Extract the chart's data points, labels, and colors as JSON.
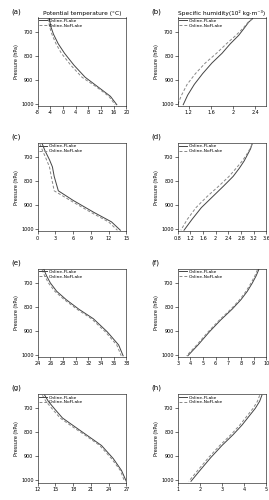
{
  "panels": [
    {
      "label": "(a)",
      "col": 0,
      "row": 0,
      "title": "Potential temperature (°C)",
      "xlim": [
        -8,
        20
      ],
      "xticks": [
        -8,
        -4,
        0,
        4,
        8,
        12,
        16,
        20
      ],
      "ylim": [
        1010,
        640
      ],
      "yticks": [
        700,
        800,
        900,
        1000
      ],
      "ylabel": "Pressure (hPa)",
      "flake_x": [
        -4.3,
        -4.1,
        -3.8,
        -3.0,
        -1.5,
        0.5,
        3.5,
        7.0,
        11.0,
        15.0,
        17.0
      ],
      "flake_p": [
        645,
        660,
        680,
        710,
        750,
        790,
        840,
        890,
        930,
        970,
        1005
      ],
      "noflake_x": [
        -4.7,
        -4.5,
        -4.2,
        -3.5,
        -2.2,
        -0.5,
        2.5,
        6.0,
        10.5,
        14.5,
        16.5
      ],
      "noflake_p": [
        645,
        660,
        680,
        710,
        750,
        790,
        840,
        890,
        930,
        970,
        1005
      ]
    },
    {
      "label": "(b)",
      "col": 1,
      "row": 0,
      "title": "Specific humidity(10² kg·m⁻³)",
      "xlim": [
        1.0,
        2.6
      ],
      "xticks": [
        1.2,
        1.6,
        2.0,
        2.4
      ],
      "ylim": [
        1010,
        640
      ],
      "yticks": [
        700,
        800,
        900,
        1000
      ],
      "ylabel": "Pressure (hPa)",
      "flake_x": [
        2.35,
        2.28,
        2.2,
        2.1,
        1.95,
        1.8,
        1.62,
        1.45,
        1.3,
        1.18,
        1.1
      ],
      "flake_p": [
        645,
        660,
        685,
        715,
        750,
        790,
        830,
        875,
        920,
        965,
        1005
      ],
      "noflake_x": [
        2.35,
        2.27,
        2.18,
        2.05,
        1.88,
        1.7,
        1.5,
        1.32,
        1.17,
        1.07,
        1.0
      ],
      "noflake_p": [
        645,
        660,
        685,
        715,
        750,
        790,
        830,
        875,
        920,
        965,
        1005
      ]
    },
    {
      "label": "(c)",
      "col": 0,
      "row": 1,
      "title": "",
      "xlim": [
        0,
        15
      ],
      "xticks": [
        0,
        3,
        6,
        9,
        12,
        15
      ],
      "ylim": [
        1010,
        640
      ],
      "yticks": [
        700,
        800,
        900,
        1000
      ],
      "ylabel": "Pressure (hPa)",
      "flake_x": [
        0.8,
        1.2,
        2.0,
        2.5,
        2.8,
        3.5,
        6.0,
        9.5,
        12.5,
        14.0
      ],
      "flake_p": [
        645,
        670,
        710,
        740,
        780,
        840,
        880,
        930,
        970,
        1005
      ],
      "noflake_x": [
        0.4,
        0.8,
        1.5,
        2.0,
        2.3,
        2.8,
        5.5,
        9.0,
        12.0,
        13.5
      ],
      "noflake_p": [
        645,
        670,
        710,
        740,
        780,
        840,
        880,
        930,
        970,
        1005
      ]
    },
    {
      "label": "(d)",
      "col": 1,
      "row": 1,
      "title": "",
      "xlim": [
        0.8,
        3.6
      ],
      "xticks": [
        0.8,
        1.2,
        1.6,
        2.0,
        2.4,
        2.8,
        3.2,
        3.6
      ],
      "ylim": [
        1010,
        640
      ],
      "yticks": [
        700,
        800,
        900,
        1000
      ],
      "ylabel": "Pressure (hPa)",
      "flake_x": [
        3.15,
        3.1,
        3.0,
        2.9,
        2.75,
        2.55,
        2.25,
        1.9,
        1.55,
        1.25,
        1.0
      ],
      "flake_p": [
        645,
        665,
        690,
        715,
        745,
        780,
        820,
        865,
        910,
        960,
        1005
      ],
      "noflake_x": [
        3.15,
        3.08,
        2.97,
        2.84,
        2.65,
        2.42,
        2.1,
        1.72,
        1.38,
        1.1,
        0.9
      ],
      "noflake_p": [
        645,
        665,
        690,
        715,
        745,
        780,
        820,
        865,
        910,
        960,
        1005
      ]
    },
    {
      "label": "(e)",
      "col": 0,
      "row": 2,
      "title": "",
      "xlim": [
        24.0,
        38.0
      ],
      "xticks": [
        24.0,
        26.0,
        28.0,
        30.0,
        32.0,
        34.0,
        36.0,
        38.0
      ],
      "ylim": [
        1010,
        640
      ],
      "yticks": [
        700,
        800,
        900,
        1000
      ],
      "ylabel": "Pressure (hPa)",
      "flake_x": [
        25.0,
        25.4,
        26.0,
        27.0,
        28.5,
        30.5,
        32.8,
        35.0,
        36.8,
        37.5
      ],
      "flake_p": [
        645,
        670,
        700,
        735,
        770,
        810,
        850,
        905,
        960,
        1005
      ],
      "noflake_x": [
        24.7,
        25.1,
        25.7,
        26.7,
        28.2,
        30.2,
        32.5,
        34.7,
        36.5,
        37.2
      ],
      "noflake_p": [
        645,
        670,
        700,
        735,
        770,
        810,
        850,
        905,
        960,
        1005
      ]
    },
    {
      "label": "(f)",
      "col": 1,
      "row": 2,
      "title": "",
      "xlim": [
        3,
        10
      ],
      "xticks": [
        3,
        4,
        5,
        6,
        7,
        8,
        9,
        10
      ],
      "ylim": [
        1010,
        640
      ],
      "yticks": [
        700,
        800,
        900,
        1000
      ],
      "ylabel": "Pressure (hPa)",
      "flake_x": [
        9.4,
        9.2,
        8.9,
        8.5,
        8.0,
        7.3,
        6.4,
        5.5,
        4.6,
        3.8
      ],
      "flake_p": [
        645,
        670,
        700,
        735,
        770,
        810,
        855,
        905,
        960,
        1005
      ],
      "noflake_x": [
        9.3,
        9.1,
        8.8,
        8.4,
        7.9,
        7.2,
        6.3,
        5.4,
        4.5,
        3.7
      ],
      "noflake_p": [
        645,
        670,
        700,
        735,
        770,
        810,
        855,
        905,
        960,
        1005
      ]
    },
    {
      "label": "(g)",
      "col": 0,
      "row": 3,
      "title": "",
      "xlim": [
        12,
        27
      ],
      "xticks": [
        12,
        15,
        18,
        21,
        24,
        27
      ],
      "ylim": [
        1010,
        640
      ],
      "yticks": [
        700,
        800,
        900,
        1000
      ],
      "ylabel": "Pressure (hPa)",
      "flake_x": [
        13.2,
        13.8,
        14.8,
        16.2,
        18.2,
        20.5,
        22.8,
        24.8,
        26.2,
        27.0
      ],
      "flake_p": [
        645,
        670,
        700,
        740,
        775,
        815,
        855,
        910,
        960,
        1005
      ],
      "noflake_x": [
        12.8,
        13.4,
        14.4,
        15.8,
        17.8,
        20.2,
        22.5,
        24.5,
        26.0,
        26.7
      ],
      "noflake_p": [
        645,
        670,
        700,
        740,
        775,
        815,
        855,
        910,
        960,
        1005
      ]
    },
    {
      "label": "(h)",
      "col": 1,
      "row": 3,
      "title": "",
      "xlim": [
        1,
        5
      ],
      "xticks": [
        1,
        2,
        3,
        4,
        5
      ],
      "ylim": [
        1010,
        640
      ],
      "yticks": [
        700,
        800,
        900,
        1000
      ],
      "ylabel": "Pressure (hPa)",
      "flake_x": [
        4.8,
        4.7,
        4.5,
        4.2,
        3.9,
        3.5,
        3.0,
        2.5,
        2.0,
        1.6
      ],
      "flake_p": [
        645,
        670,
        700,
        735,
        770,
        810,
        855,
        905,
        960,
        1005
      ],
      "noflake_x": [
        4.7,
        4.6,
        4.4,
        4.1,
        3.8,
        3.4,
        2.9,
        2.4,
        1.9,
        1.5
      ],
      "noflake_p": [
        645,
        670,
        700,
        735,
        770,
        810,
        855,
        905,
        960,
        1005
      ]
    }
  ],
  "flake_color": "#444444",
  "noflake_color": "#888888",
  "flake_style": "-",
  "noflake_style": "--",
  "flake_label": "Online-FLake",
  "noflake_label": "Online-NoFLake",
  "background": "#ffffff"
}
